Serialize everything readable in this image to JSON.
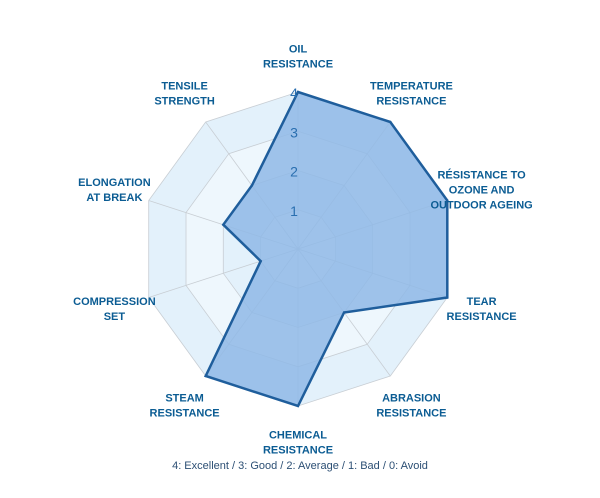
{
  "chart_data": {
    "type": "radar",
    "axes": [
      [
        "OIL",
        "RESISTANCE"
      ],
      [
        "TEMPERATURE",
        "RESISTANCE"
      ],
      [
        "RÉSISTANCE TO",
        "OZONE AND",
        "OUTDOOR AGEING"
      ],
      [
        "TEAR",
        "RESISTANCE"
      ],
      [
        "ABRASION",
        "RESISTANCE"
      ],
      [
        "CHEMICAL",
        "RESISTANCE"
      ],
      [
        "STEAM",
        "RESISTANCE"
      ],
      [
        "COMPRESSION",
        "SET"
      ],
      [
        "ELONGATION",
        "AT BREAK"
      ],
      [
        "TENSILE",
        "STRENGTH"
      ]
    ],
    "values": [
      4,
      4,
      4,
      4,
      2,
      4,
      4,
      1,
      2,
      2
    ],
    "rlim": [
      0,
      4
    ],
    "ticks": [
      "1",
      "2",
      "3",
      "4"
    ],
    "grid": true,
    "note": "4: Excellent / 3: Good / 2: Average / 1: Bad / 0: Avoid",
    "colors": {
      "label": "#0b5c93",
      "tick": "#2a6fb0",
      "outline": "#1f5e9c",
      "fill": "#8fb9e6",
      "band": "#e3f1fb",
      "grid": "#c8ced4",
      "note": "#2c4f74"
    }
  }
}
